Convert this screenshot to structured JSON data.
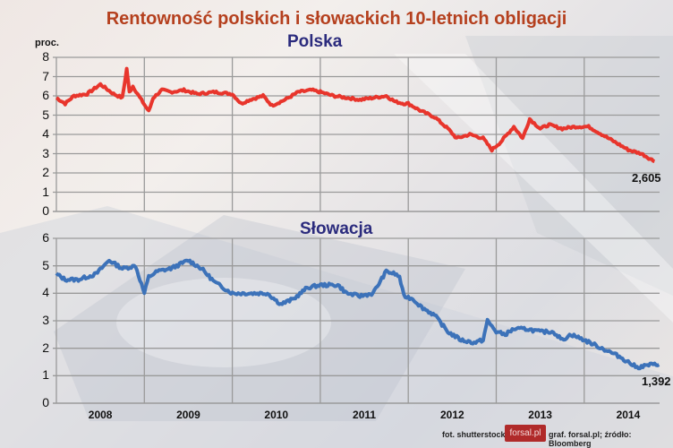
{
  "chart_data": [
    {
      "type": "line",
      "title": "Rentowność polskich i słowackich 10-letnich obligacji",
      "subtitle": "Polska",
      "ylabel": "proc.",
      "xlabel": "",
      "ylim": [
        0,
        8
      ],
      "yticks": [
        0,
        1,
        2,
        3,
        4,
        5,
        6,
        7,
        8
      ],
      "xticks": [
        "2008",
        "2009",
        "2010",
        "2011",
        "2012",
        "2013",
        "2014"
      ],
      "grid": true,
      "color": "#e8352c",
      "end_label": "2,605",
      "series": [
        {
          "name": "Polska",
          "x": [
            2008.0,
            2008.1,
            2008.2,
            2008.35,
            2008.5,
            2008.65,
            2008.75,
            2008.8,
            2008.83,
            2008.87,
            2008.95,
            2009.05,
            2009.1,
            2009.2,
            2009.3,
            2009.45,
            2009.6,
            2009.8,
            2010.0,
            2010.1,
            2010.2,
            2010.35,
            2010.45,
            2010.6,
            2010.75,
            2010.9,
            2011.0,
            2011.15,
            2011.3,
            2011.45,
            2011.6,
            2011.75,
            2011.85,
            2011.95,
            2012.0,
            2012.15,
            2012.3,
            2012.45,
            2012.55,
            2012.7,
            2012.85,
            2012.95,
            2013.05,
            2013.2,
            2013.3,
            2013.38,
            2013.5,
            2013.6,
            2013.75,
            2013.9,
            2014.05,
            2014.2,
            2014.35,
            2014.5,
            2014.65,
            2014.8
          ],
          "values": [
            5.9,
            5.6,
            6.0,
            6.1,
            6.6,
            6.1,
            5.9,
            7.4,
            6.2,
            6.5,
            5.9,
            5.2,
            5.9,
            6.3,
            6.2,
            6.3,
            6.1,
            6.2,
            6.1,
            5.6,
            5.8,
            6.0,
            5.5,
            5.8,
            6.2,
            6.3,
            6.2,
            6.0,
            5.9,
            5.8,
            5.9,
            6.0,
            5.7,
            5.6,
            5.6,
            5.2,
            4.9,
            4.3,
            3.8,
            4.0,
            3.8,
            3.2,
            3.6,
            4.4,
            3.8,
            4.8,
            4.3,
            4.5,
            4.3,
            4.4,
            4.4,
            4.0,
            3.6,
            3.2,
            3.0,
            2.6
          ]
        }
      ]
    },
    {
      "type": "line",
      "subtitle": "Słowacja",
      "ylim": [
        0,
        6
      ],
      "yticks": [
        0,
        1,
        2,
        3,
        4,
        5,
        6
      ],
      "xticks": [
        "2008",
        "2009",
        "2010",
        "2011",
        "2012",
        "2013",
        "2014"
      ],
      "grid": true,
      "color": "#3c72b9",
      "end_label": "1,392",
      "series": [
        {
          "name": "Słowacja",
          "x": [
            2008.0,
            2008.1,
            2008.25,
            2008.45,
            2008.6,
            2008.75,
            2008.9,
            2009.0,
            2009.05,
            2009.15,
            2009.3,
            2009.5,
            2009.65,
            2009.8,
            2010.0,
            2010.2,
            2010.4,
            2010.55,
            2010.7,
            2010.85,
            2011.0,
            2011.2,
            2011.3,
            2011.45,
            2011.6,
            2011.75,
            2011.85,
            2011.9,
            2011.95,
            2012.05,
            2012.15,
            2012.3,
            2012.45,
            2012.6,
            2012.75,
            2012.85,
            2012.9,
            2013.0,
            2013.1,
            2013.2,
            2013.35,
            2013.5,
            2013.65,
            2013.75,
            2013.85,
            2014.0,
            2014.2,
            2014.4,
            2014.6,
            2014.75,
            2014.85
          ],
          "values": [
            4.7,
            4.5,
            4.5,
            4.7,
            5.2,
            4.9,
            5.0,
            4.0,
            4.6,
            4.8,
            4.9,
            5.2,
            4.9,
            4.4,
            4.0,
            4.0,
            4.0,
            3.6,
            3.8,
            4.2,
            4.3,
            4.3,
            4.0,
            3.9,
            4.0,
            4.8,
            4.7,
            4.6,
            3.9,
            3.8,
            3.5,
            3.2,
            2.6,
            2.3,
            2.2,
            2.3,
            3.0,
            2.6,
            2.5,
            2.7,
            2.7,
            2.6,
            2.6,
            2.3,
            2.5,
            2.3,
            2.0,
            1.7,
            1.3,
            1.4,
            1.4
          ]
        }
      ]
    }
  ],
  "header": {
    "title": "Rentowność polskich i słowackich 10-letnich obligacji",
    "unit": "proc."
  },
  "charts": {
    "pl": {
      "subtitle": "Polska",
      "yticks": [
        "8",
        "7",
        "6",
        "5",
        "4",
        "3",
        "2",
        "1",
        "0"
      ],
      "end_label": "2,605"
    },
    "sk": {
      "subtitle": "Słowacja",
      "yticks": [
        "6",
        "5",
        "4",
        "3",
        "2",
        "1",
        "0"
      ],
      "end_label": "1,392"
    }
  },
  "xaxis": {
    "labels": [
      "2008",
      "2009",
      "2010",
      "2011",
      "2012",
      "2013",
      "2014"
    ]
  },
  "footer": {
    "photo_credit": "fot. shutterstock",
    "logo": "forsal.pl",
    "source": "graf. forsal.pl;  źródło: Bloomberg"
  },
  "colors": {
    "title": "#b5401e",
    "subtitle": "#2b2b7d",
    "poland_line": "#e8352c",
    "slovakia_line": "#3c72b9",
    "grid": "#9a9a9a",
    "logo_bg": "#b02a2a"
  }
}
